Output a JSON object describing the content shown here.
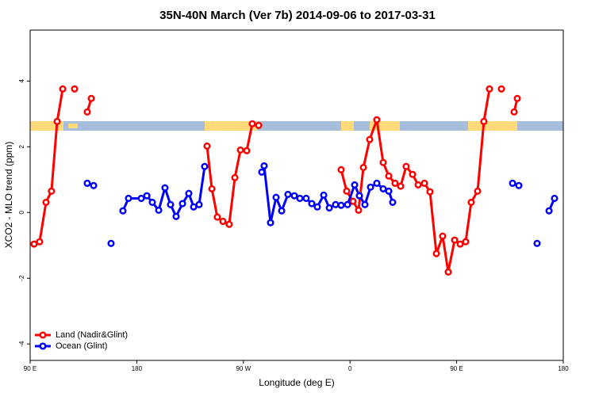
{
  "chart_data": {
    "type": "line",
    "title": "35N-40N March (Ver 7b)   2014-09-06 to 2017-03-31",
    "x_label": "Longitude (deg E)",
    "y_label": "XCO2 - MLO trend (ppm)",
    "xlim": [
      90,
      540
    ],
    "ylim": [
      -4.5,
      5.55
    ],
    "xticks": [
      {
        "value": 90,
        "label": "90 E"
      },
      {
        "value": 180,
        "label": "180"
      },
      {
        "value": 270,
        "label": "90 W"
      },
      {
        "value": 360,
        "label": "0"
      },
      {
        "value": 450,
        "label": "90 E"
      },
      {
        "value": 540,
        "label": "180"
      }
    ],
    "yticks": [
      -4,
      -2,
      0,
      2,
      4
    ],
    "legend": "bottom-left",
    "series": [
      {
        "name": "Land (Nadir&Glint)",
        "color": "#ff0000",
        "x": [
          93.3,
          98,
          103.4,
          108,
          112.8,
          117.5,
          122,
          127.5,
          132,
          138.2,
          141.6,
          200,
          239.3,
          243.4,
          248,
          252.7,
          258,
          262.8,
          267.5,
          272.8,
          277.5,
          282.9,
          320,
          352.5,
          357.2,
          362.5,
          367.2,
          371.3,
          376.6,
          382.6,
          388,
          392.7,
          398,
          402.7,
          407.4,
          412.8,
          417.5,
          422.8,
          427.5,
          432.9,
          438.2,
          442.9,
          448.3,
          453,
          457.6,
          462.3,
          467.7,
          473,
          477.7,
          483,
          487.8,
          493,
          498.5,
          501.2
        ],
        "values": [
          -0.96,
          -0.89,
          0.31,
          0.65,
          2.77,
          3.76,
          null,
          3.76,
          null,
          3.06,
          3.47,
          null,
          2.02,
          0.72,
          -0.14,
          -0.27,
          -0.36,
          1.06,
          1.9,
          1.88,
          2.7,
          2.65,
          null,
          1.3,
          0.65,
          0.34,
          0.07,
          1.37,
          2.22,
          2.82,
          1.52,
          1.11,
          0.89,
          0.8,
          1.4,
          1.16,
          0.84,
          0.89,
          0.63,
          -1.25,
          -0.72,
          -1.81,
          -0.84,
          -0.96,
          -0.89,
          0.31,
          0.65,
          2.77,
          3.76,
          null,
          3.76,
          null,
          3.06,
          3.47
        ]
      },
      {
        "name": "Ocean (Glint)",
        "color": "#0000ff",
        "x": [
          138.2,
          143.6,
          150,
          158.3,
          163,
          168.3,
          173,
          183.8,
          188.5,
          193.1,
          198.5,
          203.8,
          208.5,
          213.2,
          218.6,
          223.9,
          228,
          232.6,
          237.3,
          260,
          285.5,
          287.5,
          292.9,
          297.6,
          302.3,
          307.6,
          313,
          317.7,
          323,
          327.7,
          332.4,
          337.8,
          342.5,
          347.8,
          352.5,
          357.9,
          363.9,
          367.9,
          372.6,
          377.3,
          382.6,
          388,
          392.7,
          396,
          450,
          497.2,
          502.5,
          510,
          517.9,
          523,
          528,
          532.6
        ],
        "values": [
          0.89,
          0.82,
          null,
          -0.94,
          null,
          0.05,
          0.43,
          0.43,
          0.51,
          0.31,
          0.07,
          0.75,
          0.24,
          -0.12,
          0.27,
          0.58,
          0.17,
          0.24,
          1.4,
          null,
          1.23,
          1.42,
          -0.31,
          0.46,
          0.05,
          0.55,
          0.51,
          0.43,
          0.43,
          0.27,
          0.17,
          0.53,
          0.14,
          0.24,
          0.22,
          0.24,
          0.84,
          0.51,
          0.24,
          0.77,
          0.89,
          0.72,
          0.65,
          0.31,
          null,
          0.89,
          0.82,
          null,
          -0.94,
          null,
          0.05,
          0.43
        ]
      }
    ]
  }
}
